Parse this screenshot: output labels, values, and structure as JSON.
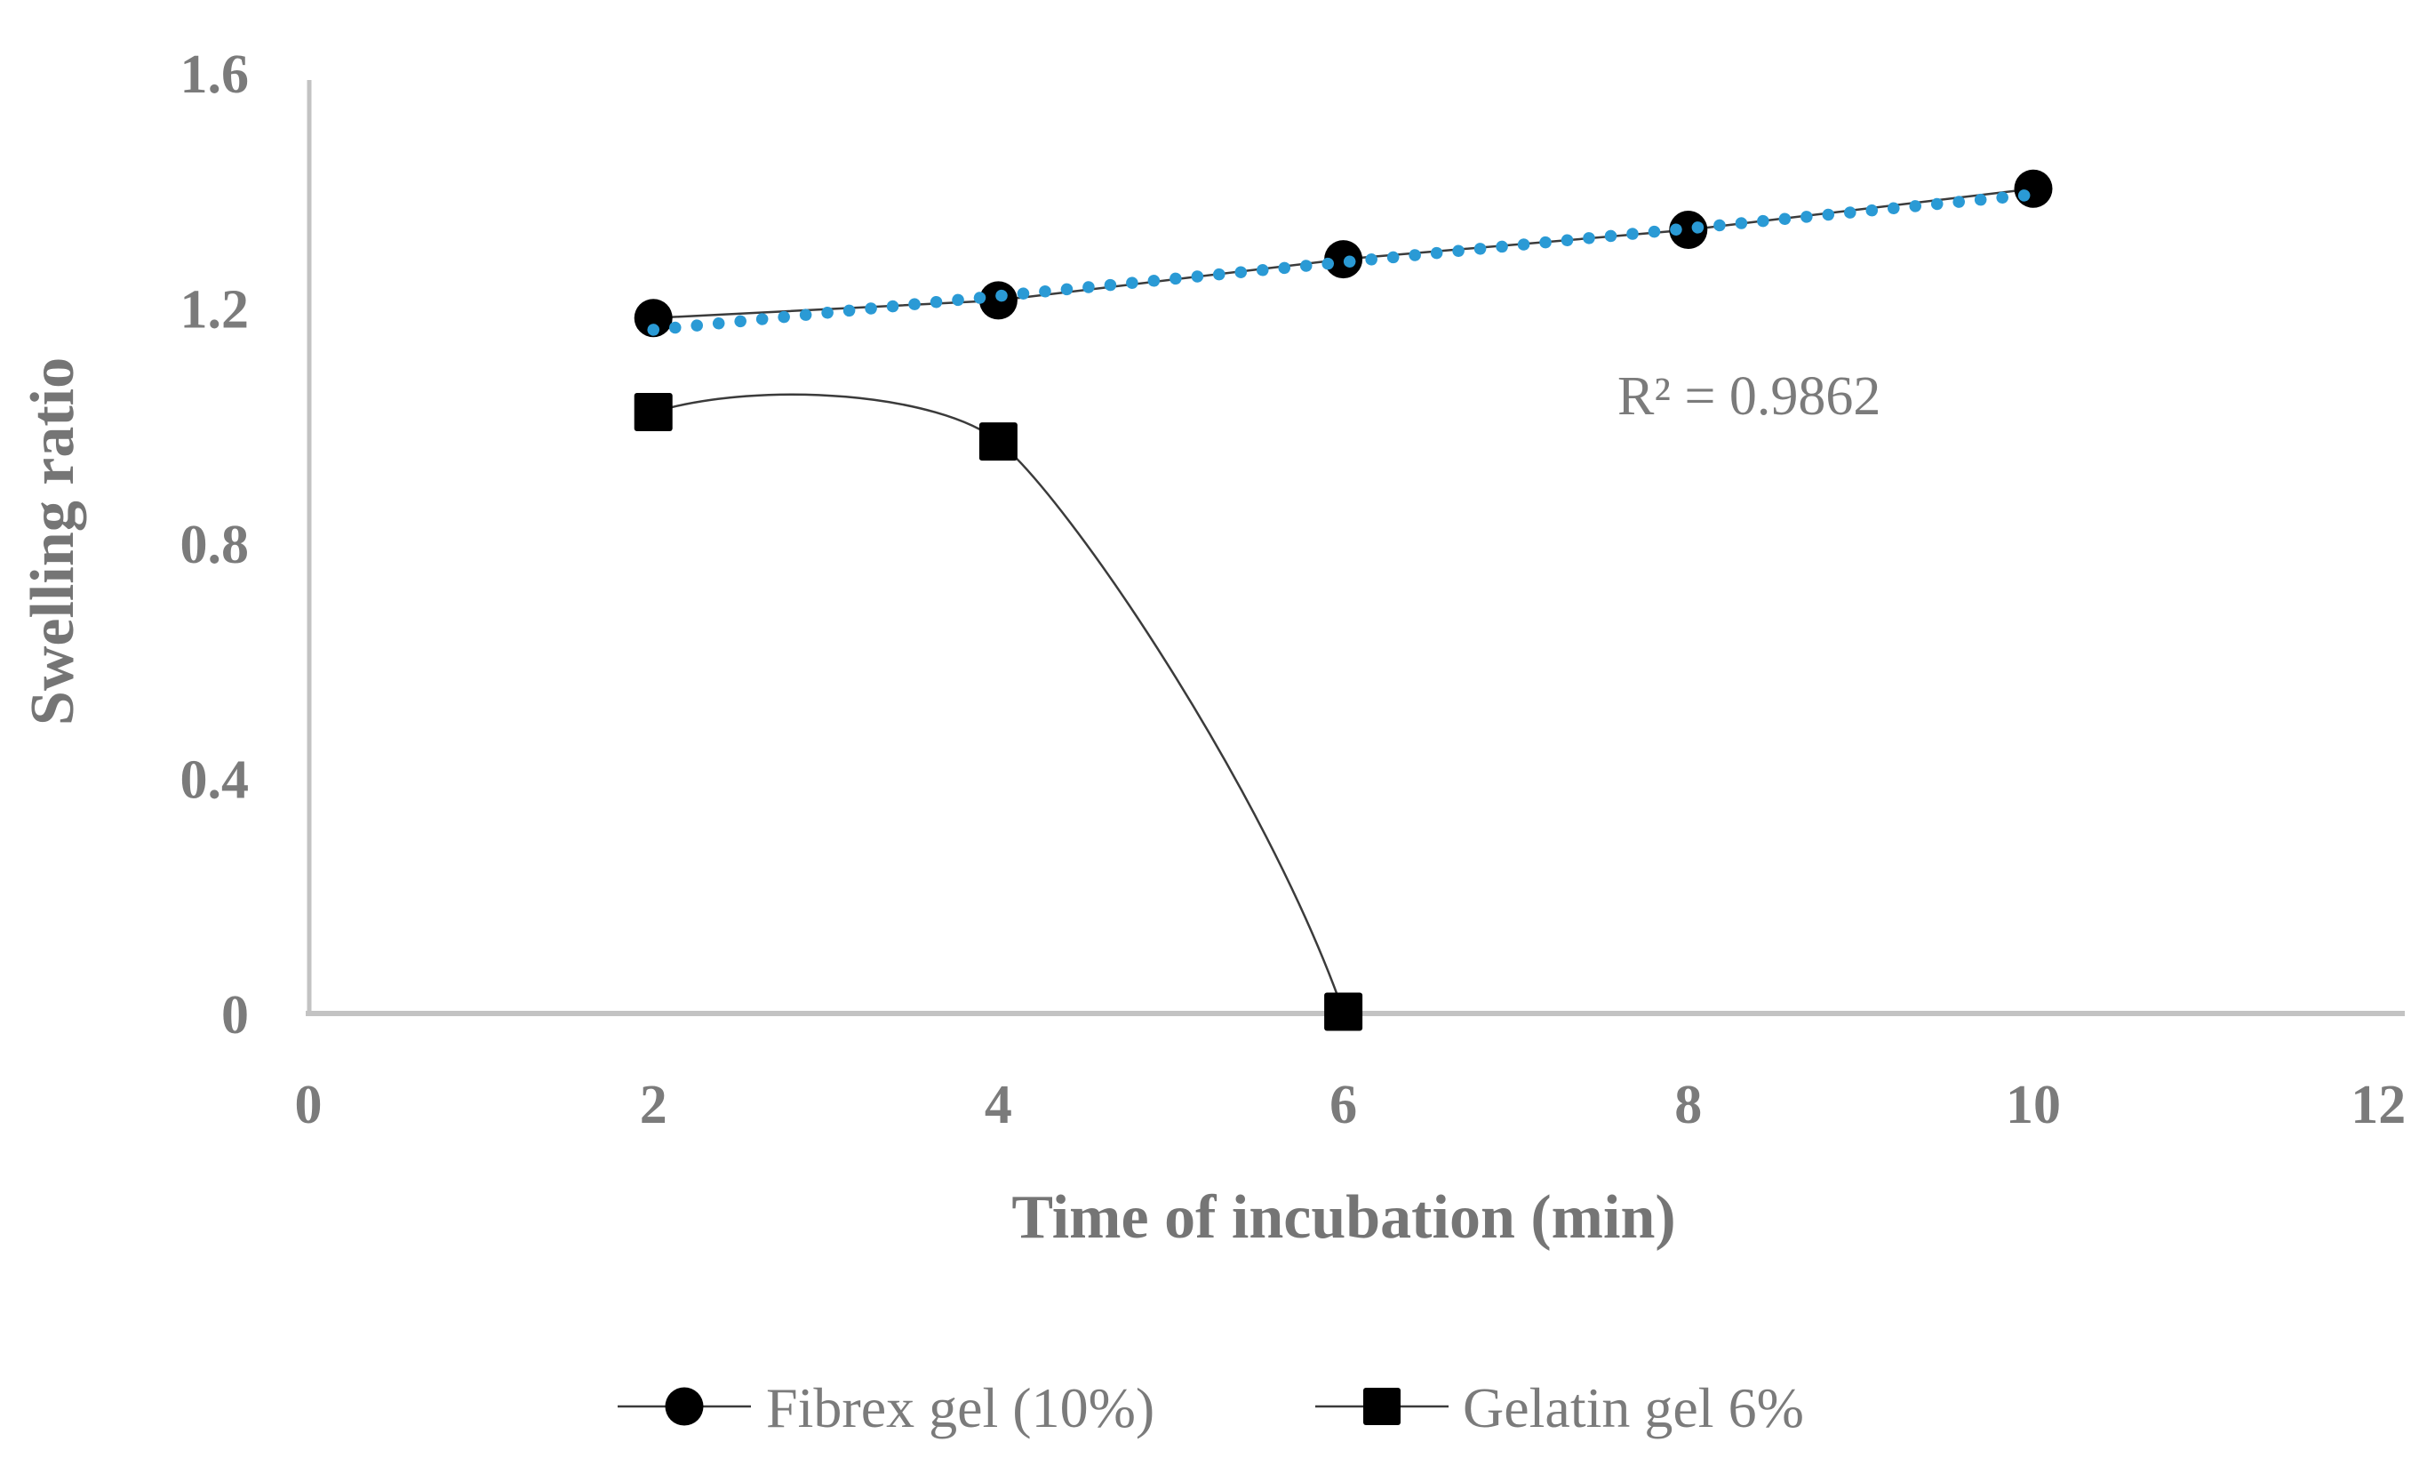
{
  "chart_data": {
    "type": "scatter",
    "title": "",
    "xlabel": "Time of incubation (min)",
    "ylabel": "Swelling ratio",
    "xlim": [
      0,
      12
    ],
    "ylim": [
      0,
      1.6
    ],
    "x_ticks": [
      0,
      2,
      4,
      6,
      8,
      10,
      12
    ],
    "y_ticks": [
      0,
      0.4,
      0.8,
      1.2,
      1.6
    ],
    "grid": "off",
    "series": [
      {
        "name": "Fibrex gel (10%)",
        "marker": "circle",
        "smooth": false,
        "x": [
          2,
          4,
          6,
          8,
          10
        ],
        "y": [
          1.18,
          1.21,
          1.28,
          1.33,
          1.4
        ]
      },
      {
        "name": "Gelatin gel 6%",
        "marker": "square",
        "smooth": true,
        "x": [
          2,
          4,
          6
        ],
        "y": [
          1.02,
          0.97,
          0
        ]
      }
    ],
    "trendline": {
      "applies_to": "Fibrex gel (10%)",
      "style": "dotted",
      "x_start": 2,
      "y_start": 1.16,
      "x_end": 10,
      "y_end": 1.39,
      "r2_label": "R² = 0.9862"
    },
    "legend": {
      "position": "bottom",
      "entries": [
        "Fibrex gel (10%)",
        "Gelatin gel 6%"
      ]
    },
    "colors": {
      "background": "#ffffff",
      "text_gray": "#7b7b7b",
      "axis_gray": "#c3c3c3",
      "series_line_gray": "#3b3b3b",
      "marker_black": "#000000",
      "trend_blue": "#2a9ad5"
    }
  }
}
